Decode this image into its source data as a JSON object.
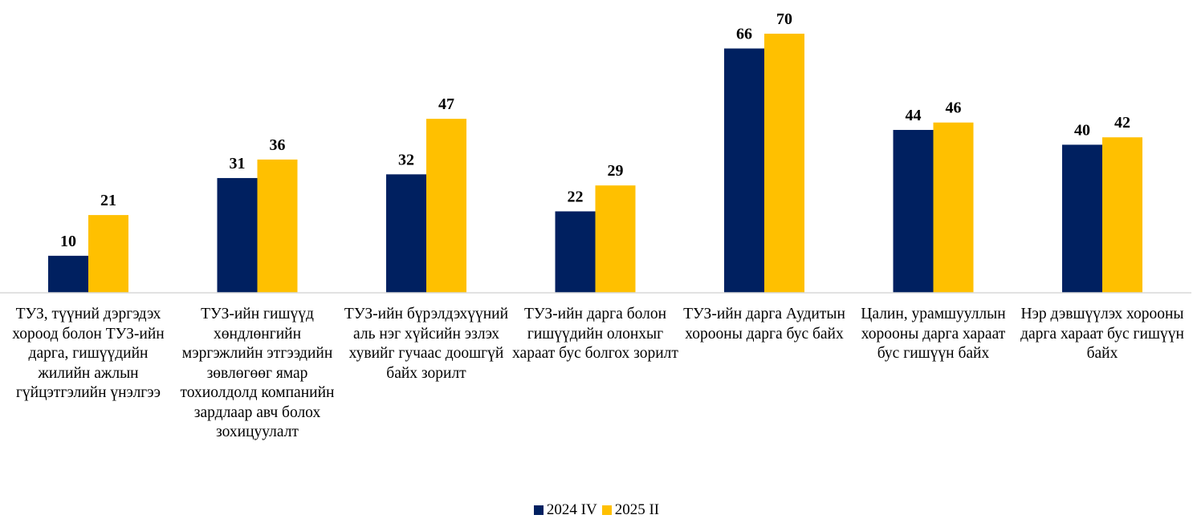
{
  "chart_data": {
    "type": "bar",
    "categories": [
      "ТУЗ, түүний дэргэдэх хороод болон ТУЗ-ийн дарга, гишүүдийн жилийн ажлын гүйцэтгэлийн үнэлгээ",
      "ТУЗ-ийн гишүүд хөндлөнгийн мэргэжлийн этгээдийн зөвлөгөөг ямар тохиолдолд компанийн зардлаар авч болох зохицуулалт",
      "ТУЗ-ийн бүрэлдэхүүний аль нэг хүйсийн эзлэх хувийг гучаас доошгүй байх зорилт",
      "ТУЗ-ийн дарга болон гишүүдийн олонхыг хараат бус болгох зорилт",
      "ТУЗ-ийн дарга Аудитын хорооны дарга бус байх",
      "Цалин, урамшууллын хорооны дарга хараат бус гишүүн байх",
      "Нэр дэвшүүлэх хорооны дарга хараат бус гишүүн байх"
    ],
    "series": [
      {
        "name": "2024 IV",
        "values": [
          10,
          31,
          32,
          22,
          66,
          44,
          40
        ],
        "color": "#002060"
      },
      {
        "name": "2025 II",
        "values": [
          21,
          36,
          47,
          29,
          70,
          46,
          42
        ],
        "color": "#FFC000"
      }
    ],
    "ylim": [
      0,
      70
    ],
    "grid": false,
    "legend_position": "bottom-center",
    "data_labels": true,
    "axis_color": "#D9D9D9"
  }
}
